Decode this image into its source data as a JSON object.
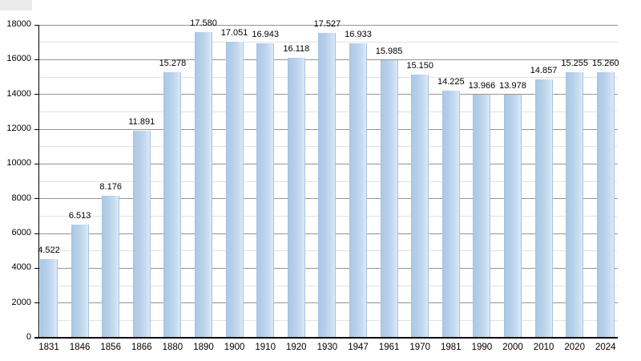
{
  "chart_data": {
    "type": "bar",
    "title": "",
    "xlabel": "",
    "ylabel": "",
    "categories": [
      "1831",
      "1846",
      "1856",
      "1866",
      "1880",
      "1890",
      "1900",
      "1910",
      "1920",
      "1930",
      "1947",
      "1961",
      "1970",
      "1981",
      "1990",
      "2000",
      "2010",
      "2020",
      "2024"
    ],
    "values": [
      4522,
      6513,
      8176,
      11891,
      15278,
      17580,
      17051,
      16943,
      16118,
      17527,
      16933,
      15985,
      15150,
      14225,
      13966,
      13978,
      14857,
      15255,
      15260
    ],
    "bar_labels": [
      "4.522",
      "6.513",
      "8.176",
      "11.891",
      "15.278",
      "17.580",
      "17.051",
      "16.943",
      "16.118",
      "17.527",
      "16.933",
      "15.985",
      "15.150",
      "14.225",
      "13.966",
      "13.978",
      "14.857",
      "15.255",
      "15.260"
    ],
    "ylim": [
      0,
      18000
    ],
    "ytick_major_step": 2000,
    "ytick_minor_step": 1000,
    "ytick_labels": [
      "0",
      "2000",
      "4000",
      "6000",
      "8000",
      "10000",
      "12000",
      "14000",
      "16000",
      "18000"
    ],
    "grid": true,
    "legend_position": "none",
    "colors": {
      "bar_fill": "#b9d2ec",
      "bar_fill_light": "#dde9f7",
      "bar_edge": "#a6c3e1",
      "grid_major": "#949494",
      "grid_minor": "#e2e2e2",
      "axis": "#000000",
      "text": "#000000",
      "background": "#ffffff"
    }
  }
}
